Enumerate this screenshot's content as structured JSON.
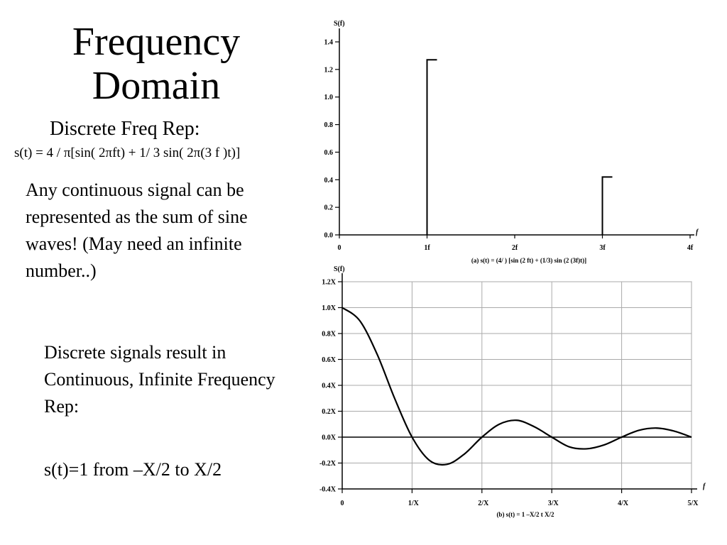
{
  "slide": {
    "title_line1": "Frequency",
    "title_line2": "Domain",
    "subheading": "Discrete Freq Rep:",
    "formula": "s(t) = 4 / π[sin( 2πft) + 1/ 3 sin( 2π(3 f )t)]",
    "paragraph1": "Any continuous signal can be represented as the sum of sine waves! (May need an infinite number..)",
    "paragraph2": "Discrete signals result in Continuous, Infinite Frequency Rep:",
    "paragraph3": "s(t)=1 from –X/2 to X/2"
  },
  "chart_data": [
    {
      "type": "bar",
      "ylabel": "S(f)",
      "xlabel": "f",
      "categories": [
        "1f",
        "3f"
      ],
      "x": [
        1,
        3
      ],
      "values": [
        1.27,
        0.42
      ],
      "xlim": [
        0,
        4
      ],
      "ylim": [
        0,
        1.4
      ],
      "x_ticks": [
        "0",
        "1f",
        "2f",
        "3f",
        "4f"
      ],
      "y_ticks": [
        "0.0",
        "0.2",
        "0.4",
        "0.6",
        "0.8",
        "1.0",
        "1.2",
        "1.4"
      ],
      "caption": "(a) s(t) = (4/  ) [sin (2  ft) + (1/3) sin (2  (3f)t)]",
      "grid": false
    },
    {
      "type": "line",
      "ylabel": "S(f)",
      "xlabel": "f",
      "x": [
        0,
        0.25,
        0.5,
        0.75,
        1,
        1.25,
        1.5,
        1.75,
        2,
        2.25,
        2.5,
        2.75,
        3,
        3.25,
        3.5,
        3.75,
        4,
        4.25,
        4.5,
        4.75,
        5
      ],
      "values": [
        1.0,
        0.9,
        0.64,
        0.3,
        0.0,
        -0.18,
        -0.21,
        -0.13,
        0.0,
        0.1,
        0.13,
        0.08,
        0.0,
        -0.075,
        -0.09,
        -0.06,
        0.0,
        0.053,
        0.07,
        0.047,
        0.0
      ],
      "xlim": [
        0,
        5
      ],
      "ylim": [
        -0.4,
        1.2
      ],
      "x_ticks": [
        "0",
        "1/X",
        "2/X",
        "3/X",
        "4/X",
        "5/X"
      ],
      "y_ticks": [
        "-0.4X",
        "-0.2X",
        "0.0X",
        "0.2X",
        "0.4X",
        "0.6X",
        "0.8X",
        "1.0X",
        "1.2X"
      ],
      "caption": "(b) s(t) = 1       –X/2    t    X/2",
      "grid": true
    }
  ]
}
